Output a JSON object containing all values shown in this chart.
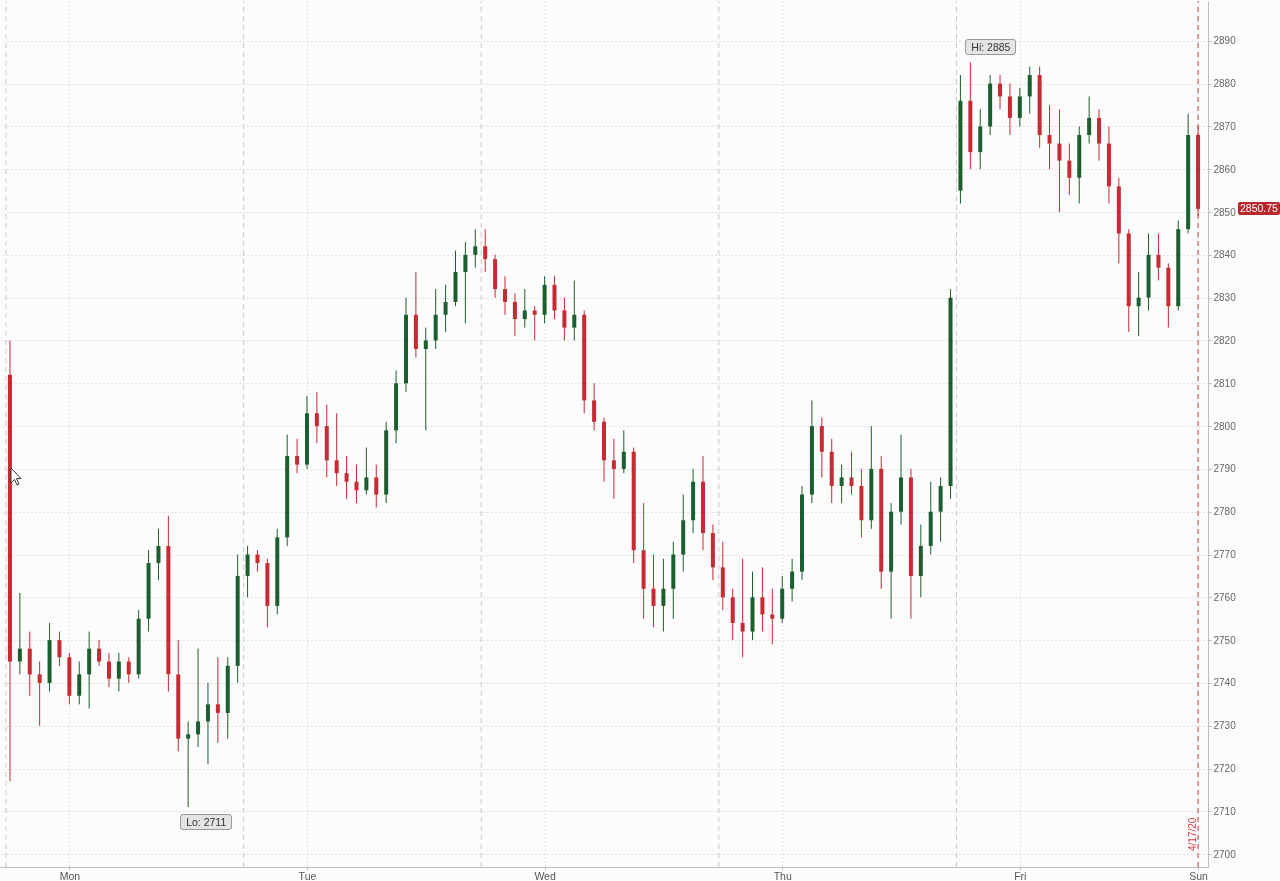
{
  "chart_data": {
    "type": "candlestick",
    "categories": [
      null,
      null,
      null,
      null,
      null,
      null,
      "Mon",
      null,
      null,
      null,
      null,
      null,
      null,
      null,
      null,
      null,
      null,
      null,
      null,
      null,
      null,
      null,
      null,
      null,
      null,
      null,
      null,
      null,
      null,
      null,
      "Tue",
      null,
      null,
      null,
      null,
      null,
      null,
      null,
      null,
      null,
      null,
      null,
      null,
      null,
      null,
      null,
      null,
      null,
      null,
      null,
      null,
      null,
      null,
      null,
      "Wed",
      null,
      null,
      null,
      null,
      null,
      null,
      null,
      null,
      null,
      null,
      null,
      null,
      null,
      null,
      null,
      null,
      null,
      null,
      null,
      null,
      null,
      null,
      null,
      "Thu",
      null,
      null,
      null,
      null,
      null,
      null,
      null,
      null,
      null,
      null,
      null,
      null,
      null,
      null,
      null,
      null,
      null,
      null,
      null,
      null,
      null,
      null,
      null,
      "Fri",
      null,
      null,
      null,
      null,
      null,
      null,
      null,
      null,
      null,
      null,
      null,
      null,
      null,
      null,
      null,
      null,
      null,
      "Sun"
    ],
    "ohlc": [
      [
        2812,
        2820,
        2717,
        2745
      ],
      [
        2745,
        2761,
        2742,
        2748
      ],
      [
        2748,
        2752,
        2737,
        2742
      ],
      [
        2742,
        2745,
        2730,
        2740
      ],
      [
        2740,
        2754,
        2738,
        2750
      ],
      [
        2750,
        2752,
        2744,
        2746
      ],
      [
        2746,
        2747,
        2735,
        2737
      ],
      [
        2737,
        2745,
        2735,
        2742
      ],
      [
        2742,
        2752,
        2734,
        2748
      ],
      [
        2748,
        2750,
        2744,
        2745
      ],
      [
        2745,
        2747,
        2739,
        2741
      ],
      [
        2741,
        2747,
        2738,
        2745
      ],
      [
        2745,
        2746,
        2740,
        2742
      ],
      [
        2742,
        2757,
        2741,
        2755
      ],
      [
        2755,
        2771,
        2752,
        2768
      ],
      [
        2768,
        2776,
        2764,
        2772
      ],
      [
        2772,
        2779,
        2738,
        2742
      ],
      [
        2742,
        2750,
        2724,
        2727
      ],
      [
        2727,
        2731,
        2711,
        2728
      ],
      [
        2728,
        2748,
        2725,
        2731
      ],
      [
        2731,
        2740,
        2721,
        2735
      ],
      [
        2735,
        2746,
        2726,
        2733
      ],
      [
        2733,
        2746,
        2727,
        2744
      ],
      [
        2744,
        2770,
        2740,
        2765
      ],
      [
        2765,
        2772,
        2760,
        2770
      ],
      [
        2770,
        2771,
        2766,
        2768
      ],
      [
        2768,
        2769,
        2753,
        2758
      ],
      [
        2758,
        2776,
        2756,
        2774
      ],
      [
        2774,
        2798,
        2772,
        2793
      ],
      [
        2793,
        2797,
        2789,
        2791
      ],
      [
        2791,
        2807,
        2790,
        2803
      ],
      [
        2803,
        2808,
        2796,
        2800
      ],
      [
        2800,
        2805,
        2788,
        2792
      ],
      [
        2792,
        2803,
        2786,
        2789
      ],
      [
        2789,
        2793,
        2783,
        2787
      ],
      [
        2787,
        2791,
        2782,
        2785
      ],
      [
        2785,
        2795,
        2784,
        2788
      ],
      [
        2788,
        2791,
        2781,
        2784
      ],
      [
        2784,
        2801,
        2782,
        2799
      ],
      [
        2799,
        2813,
        2796,
        2810
      ],
      [
        2810,
        2830,
        2808,
        2826
      ],
      [
        2826,
        2836,
        2816,
        2818
      ],
      [
        2818,
        2823,
        2799,
        2820
      ],
      [
        2820,
        2832,
        2818,
        2826
      ],
      [
        2826,
        2833,
        2822,
        2829
      ],
      [
        2829,
        2841,
        2828,
        2836
      ],
      [
        2836,
        2843,
        2824,
        2840
      ],
      [
        2840,
        2846,
        2837,
        2842
      ],
      [
        2842,
        2846,
        2836,
        2839
      ],
      [
        2839,
        2840,
        2830,
        2832
      ],
      [
        2832,
        2835,
        2826,
        2829
      ],
      [
        2829,
        2831,
        2821,
        2825
      ],
      [
        2825,
        2832,
        2823,
        2827
      ],
      [
        2827,
        2828,
        2820,
        2826
      ],
      [
        2826,
        2835,
        2824,
        2833
      ],
      [
        2833,
        2835,
        2825,
        2827
      ],
      [
        2827,
        2830,
        2820,
        2823
      ],
      [
        2823,
        2834,
        2820,
        2826
      ],
      [
        2826,
        2827,
        2803,
        2806
      ],
      [
        2806,
        2810,
        2799,
        2801
      ],
      [
        2801,
        2802,
        2787,
        2792
      ],
      [
        2792,
        2797,
        2783,
        2790
      ],
      [
        2790,
        2799,
        2789,
        2794
      ],
      [
        2794,
        2795,
        2768,
        2771
      ],
      [
        2771,
        2782,
        2755,
        2762
      ],
      [
        2762,
        2770,
        2753,
        2758
      ],
      [
        2758,
        2769,
        2752,
        2762
      ],
      [
        2762,
        2773,
        2755,
        2770
      ],
      [
        2770,
        2784,
        2766,
        2778
      ],
      [
        2778,
        2790,
        2775,
        2787
      ],
      [
        2787,
        2793,
        2771,
        2775
      ],
      [
        2775,
        2777,
        2764,
        2767
      ],
      [
        2767,
        2773,
        2757,
        2760
      ],
      [
        2760,
        2762,
        2750,
        2754
      ],
      [
        2754,
        2769,
        2746,
        2752
      ],
      [
        2752,
        2766,
        2750,
        2760
      ],
      [
        2760,
        2767,
        2752,
        2756
      ],
      [
        2756,
        2762,
        2749,
        2755
      ],
      [
        2755,
        2765,
        2754,
        2762
      ],
      [
        2762,
        2769,
        2759,
        2766
      ],
      [
        2766,
        2786,
        2764,
        2784
      ],
      [
        2784,
        2806,
        2782,
        2800
      ],
      [
        2800,
        2802,
        2788,
        2794
      ],
      [
        2794,
        2797,
        2782,
        2786
      ],
      [
        2786,
        2791,
        2782,
        2788
      ],
      [
        2788,
        2794,
        2784,
        2786
      ],
      [
        2786,
        2790,
        2774,
        2778
      ],
      [
        2778,
        2800,
        2776,
        2790
      ],
      [
        2790,
        2793,
        2762,
        2766
      ],
      [
        2766,
        2782,
        2755,
        2780
      ],
      [
        2780,
        2798,
        2777,
        2788
      ],
      [
        2788,
        2790,
        2755,
        2765
      ],
      [
        2765,
        2777,
        2760,
        2772
      ],
      [
        2772,
        2787,
        2770,
        2780
      ],
      [
        2780,
        2788,
        2773,
        2786
      ],
      [
        2786,
        2832,
        2783,
        2830
      ],
      [
        2855,
        2882,
        2852,
        2876
      ],
      [
        2876,
        2885,
        2860,
        2864
      ],
      [
        2864,
        2874,
        2860,
        2870
      ],
      [
        2870,
        2882,
        2868,
        2880
      ],
      [
        2880,
        2882,
        2874,
        2877
      ],
      [
        2877,
        2880,
        2868,
        2872
      ],
      [
        2872,
        2879,
        2870,
        2877
      ],
      [
        2877,
        2884,
        2873,
        2882
      ],
      [
        2882,
        2884,
        2865,
        2868
      ],
      [
        2868,
        2875,
        2860,
        2866
      ],
      [
        2866,
        2874,
        2850,
        2862
      ],
      [
        2862,
        2866,
        2854,
        2858
      ],
      [
        2858,
        2870,
        2852,
        2868
      ],
      [
        2868,
        2877,
        2866,
        2872
      ],
      [
        2872,
        2874,
        2862,
        2866
      ],
      [
        2866,
        2870,
        2852,
        2856
      ],
      [
        2856,
        2858,
        2838,
        2845
      ],
      [
        2845,
        2846,
        2822,
        2828
      ],
      [
        2828,
        2836,
        2821,
        2830
      ],
      [
        2830,
        2845,
        2827,
        2840
      ],
      [
        2840,
        2845,
        2834,
        2837
      ],
      [
        2837,
        2838,
        2823,
        2828
      ],
      [
        2828,
        2848,
        2827,
        2846
      ],
      [
        2846,
        2873,
        2845,
        2868
      ],
      [
        2868,
        2870,
        2849,
        2850.75
      ]
    ],
    "colors": [
      "#c62a32",
      "#1d5e2e",
      "#c62a32",
      "#c62a32",
      "#1d5e2e",
      "#c62a32",
      "#c62a32",
      "#1d5e2e",
      "#1d5e2e",
      "#c62a32",
      "#c62a32",
      "#1d5e2e",
      "#c62a32",
      "#1d5e2e",
      "#1d5e2e",
      "#1d5e2e",
      "#c62a32",
      "#c62a32",
      "#1d5e2e",
      "#1d5e2e",
      "#1d5e2e",
      "#c62a32",
      "#1d5e2e",
      "#1d5e2e",
      "#1d5e2e",
      "#c62a32",
      "#c62a32",
      "#1d5e2e",
      "#1d5e2e",
      "#c62a32",
      "#1d5e2e",
      "#c62a32",
      "#c62a32",
      "#c62a32",
      "#c62a32",
      "#c62a32",
      "#1d5e2e",
      "#c62a32",
      "#1d5e2e",
      "#1d5e2e",
      "#1d5e2e",
      "#c62a32",
      "#1d5e2e",
      "#1d5e2e",
      "#1d5e2e",
      "#1d5e2e",
      "#1d5e2e",
      "#1d5e2e",
      "#c62a32",
      "#c62a32",
      "#c62a32",
      "#c62a32",
      "#1d5e2e",
      "#c62a32",
      "#1d5e2e",
      "#c62a32",
      "#c62a32",
      "#1d5e2e",
      "#c62a32",
      "#c62a32",
      "#c62a32",
      "#c62a32",
      "#1d5e2e",
      "#c62a32",
      "#c62a32",
      "#c62a32",
      "#1d5e2e",
      "#1d5e2e",
      "#1d5e2e",
      "#1d5e2e",
      "#c62a32",
      "#c62a32",
      "#c62a32",
      "#c62a32",
      "#c62a32",
      "#1d5e2e",
      "#c62a32",
      "#c62a32",
      "#1d5e2e",
      "#1d5e2e",
      "#1d5e2e",
      "#1d5e2e",
      "#c62a32",
      "#c62a32",
      "#1d5e2e",
      "#c62a32",
      "#c62a32",
      "#1d5e2e",
      "#c62a32",
      "#1d5e2e",
      "#1d5e2e",
      "#c62a32",
      "#1d5e2e",
      "#1d5e2e",
      "#1d5e2e",
      "#1d5e2e",
      "#1d5e2e",
      "#c62a32",
      "#1d5e2e",
      "#1d5e2e",
      "#c62a32",
      "#c62a32",
      "#1d5e2e",
      "#1d5e2e",
      "#c62a32",
      "#c62a32",
      "#c62a32",
      "#c62a32",
      "#1d5e2e",
      "#1d5e2e",
      "#c62a32",
      "#c62a32",
      "#c62a32",
      "#c62a32",
      "#1d5e2e",
      "#1d5e2e",
      "#c62a32",
      "#c62a32",
      "#1d5e2e",
      "#1d5e2e",
      "#c62a32"
    ],
    "ylim": [
      2697,
      2899.3
    ],
    "yticks": [
      2700,
      2710,
      2720,
      2730,
      2740,
      2750,
      2760,
      2770,
      2780,
      2790,
      2800,
      2810,
      2820,
      2830,
      2840,
      2850,
      2860,
      2870,
      2880,
      2890
    ],
    "grid": true,
    "ref_lines": [
      {
        "axis": "x",
        "value": "Sun",
        "label": "4/17/20",
        "color": "#d63a3a",
        "line_style": "dashed"
      }
    ],
    "annotations": [
      "Hi: 2885",
      "Lo: 2711",
      "2850.75"
    ]
  }
}
